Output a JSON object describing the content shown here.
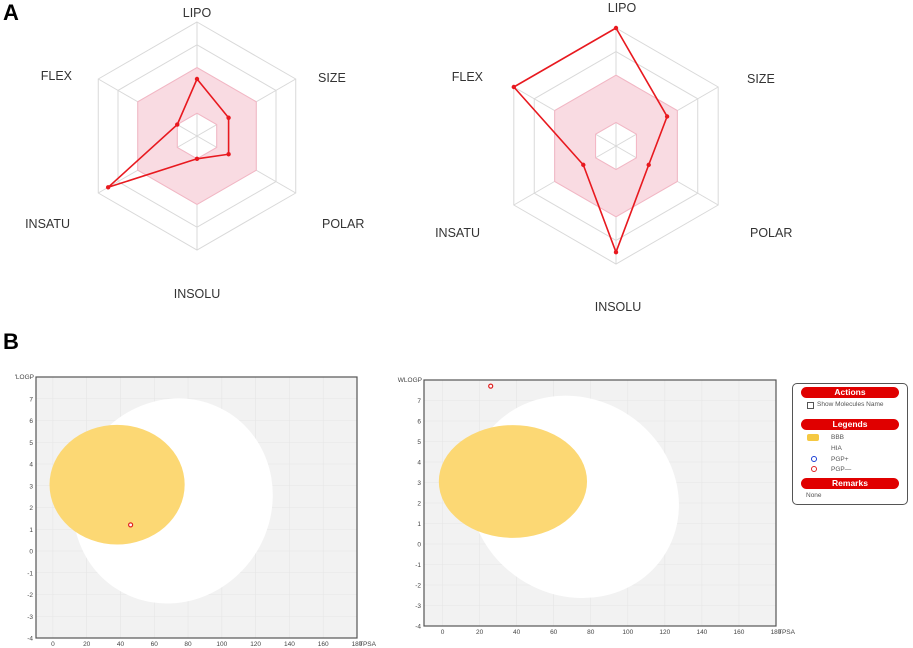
{
  "panels": {
    "a": "A",
    "b": "B"
  },
  "chart_data": [
    {
      "type": "radar",
      "axes": [
        "LIPO",
        "SIZE",
        "POLAR",
        "INSOLU",
        "INSATU",
        "FLEX"
      ],
      "rings": 5,
      "optimal_range": [
        0.0,
        0.45
      ],
      "inner_hole": 0.2,
      "values": [
        0.5,
        0.32,
        0.32,
        0.2,
        0.9,
        0.2
      ],
      "colors": {
        "line": "#e8191f",
        "band": "#f9dbe2",
        "grid": "#d9d9d9"
      }
    },
    {
      "type": "radar",
      "axes": [
        "LIPO",
        "SIZE",
        "POLAR",
        "INSOLU",
        "INSATU",
        "FLEX"
      ],
      "rings": 5,
      "optimal_range": [
        0.0,
        0.45
      ],
      "inner_hole": 0.2,
      "values": [
        1.0,
        0.5,
        0.32,
        0.9,
        0.32,
        1.0
      ],
      "colors": {
        "line": "#e8191f",
        "band": "#f9dbe2",
        "grid": "#d9d9d9"
      }
    },
    {
      "type": "scatter",
      "xlabel": "TPSA",
      "ylabel": "'LOGP",
      "xlim": [
        -10,
        180
      ],
      "ylim": [
        -4,
        8
      ],
      "xticks": [
        0,
        20,
        40,
        60,
        80,
        100,
        120,
        140,
        160,
        180
      ],
      "yticks": [
        -4,
        -3,
        -2,
        -1,
        0,
        1,
        2,
        3,
        4,
        5,
        6,
        7
      ],
      "points": [
        {
          "x": 46,
          "y": 1.2,
          "class": "PGP-"
        }
      ],
      "colors": {
        "background": "#f2f2f2",
        "hia": "#ffffff",
        "bbb": "#fcd874",
        "point": "#e02020"
      }
    },
    {
      "type": "scatter",
      "xlabel": "TPSA",
      "ylabel": "WLOGP",
      "xlim": [
        -10,
        180
      ],
      "ylim": [
        -4,
        8
      ],
      "xticks": [
        0,
        20,
        40,
        60,
        80,
        100,
        120,
        140,
        160,
        180
      ],
      "yticks": [
        -4,
        -3,
        -2,
        -1,
        0,
        1,
        2,
        3,
        4,
        5,
        6,
        7
      ],
      "points": [
        {
          "x": 26,
          "y": 7.7,
          "class": "PGP-"
        }
      ],
      "colors": {
        "background": "#f2f2f2",
        "hia": "#ffffff",
        "bbb": "#fcd874",
        "point": "#e02020"
      }
    }
  ],
  "legend_panel": {
    "actions_title": "Actions",
    "show_names": "Show Molecules Name",
    "legends_title": "Legends",
    "items": [
      {
        "label": "BBB",
        "icon": "yellow-swatch"
      },
      {
        "label": "HIA",
        "icon": "none"
      },
      {
        "label": "PGP+",
        "icon": "blue-circle",
        "color": "#1a3fd6"
      },
      {
        "label": "PGP—",
        "icon": "red-circle",
        "color": "#e02020"
      }
    ],
    "remarks_title": "Remarks",
    "remarks_text": "None"
  }
}
